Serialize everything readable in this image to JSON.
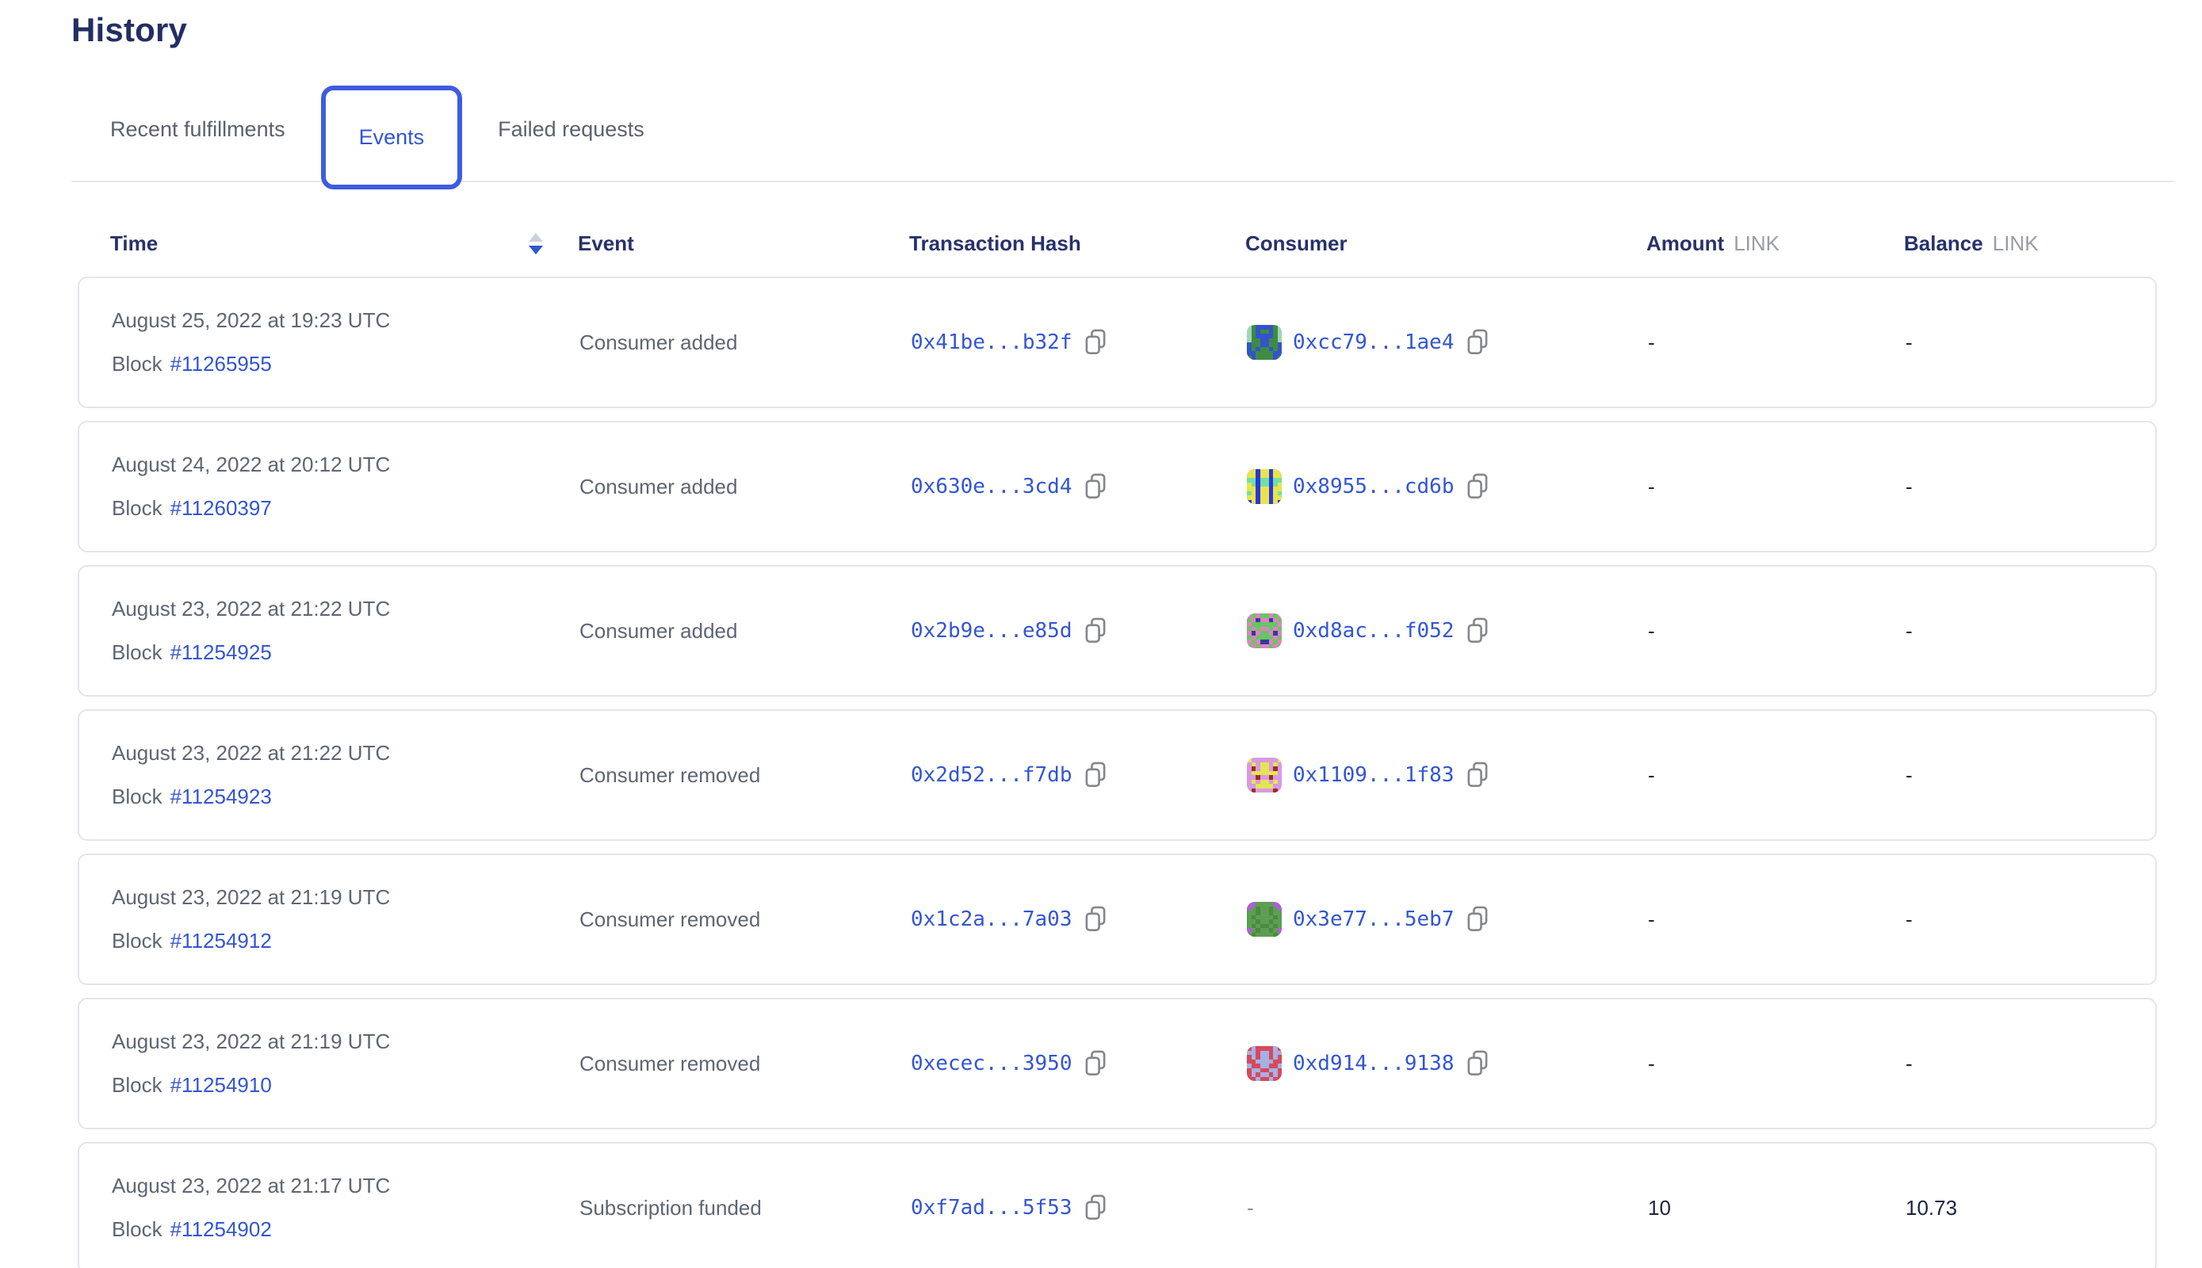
{
  "page": {
    "title": "History"
  },
  "tabs": [
    {
      "label": "Recent fulfillments",
      "active": false
    },
    {
      "label": "Events",
      "active": true
    },
    {
      "label": "Failed requests",
      "active": false
    }
  ],
  "colors": {
    "accent_blue": "#3355d1",
    "tab_border_blue": "#3d5ce0",
    "heading_navy": "#232e63",
    "text_gray": "#5e6573",
    "unit_gray": "#989ca6",
    "border_gray": "#e4e5e9",
    "value_dark": "#1c2340"
  },
  "table": {
    "columns": {
      "time": "Time",
      "event": "Event",
      "hash": "Transaction Hash",
      "consumer": "Consumer",
      "amount": "Amount",
      "balance": "Balance",
      "unit": "LINK"
    },
    "sort": {
      "column": "Time",
      "direction": "desc"
    },
    "rows": [
      {
        "time": "August 25, 2022 at 19:23 UTC",
        "block_label": "Block",
        "block": "#11265955",
        "event": "Consumer added",
        "tx_hash": "0x41be...b32f",
        "consumer": {
          "address": "0xcc79...1ae4",
          "avatar": {
            "bg": "#3e8b41",
            "color": "#3353cc",
            "spot": "#9fd5b5",
            "pattern": [
              "s.cccc.s",
              "s.c..c.s",
              "s.cccc.s",
              "s..cc..s",
              "c..cc..c",
              "c.c..c.c",
              "cc....cc",
              ".c....c."
            ]
          }
        },
        "amount": "-",
        "balance": "-"
      },
      {
        "time": "August 24, 2022 at 20:12 UTC",
        "block_label": "Block",
        "block": "#11260397",
        "event": "Consumer added",
        "tx_hash": "0x630e...3cd4",
        "consumer": {
          "address": "0x8955...cd6b",
          "avatar": {
            "bg": "#2b35d8",
            "color": "#e9e44c",
            "spot": "#71dfa5",
            "pattern": [
              "cc.cc.cc",
              "cc.cc.cc",
              "ss.ss.ss",
              "cs.ss.sc",
              "cc.cc.cc",
              "sc.cc.cs",
              "cc.cc.cc",
              ".c.cc.c."
            ]
          }
        },
        "amount": "-",
        "balance": "-"
      },
      {
        "time": "August 23, 2022 at 21:22 UTC",
        "block_label": "Block",
        "block": "#11254925",
        "event": "Consumer added",
        "tx_hash": "0x2b9e...e85d",
        "consumer": {
          "address": "0xd8ac...f052",
          "avatar": {
            "bg": "#e77fc1",
            "color": "#63c763",
            "spot": "#2c3f96",
            "pattern": [
              ".c.cc.c.",
              "c.s..s.c",
              ".cccccc.",
              "c.c..c.c",
              ".s.cc.s.",
              "c.cccc.c",
              ".c.ss.c.",
              "c.c..c.c"
            ]
          }
        },
        "amount": "-",
        "balance": "-"
      },
      {
        "time": "August 23, 2022 at 21:22 UTC",
        "block_label": "Block",
        "block": "#11254923",
        "event": "Consumer removed",
        "tx_hash": "0x2d52...f7db",
        "consumer": {
          "address": "0x1109...1f83",
          "avatar": {
            "bg": "#d79ae4",
            "color": "#e5e455",
            "spot": "#a42a24",
            "pattern": [
              "c......c",
              ".c.cc.c.",
              ".s.cc.s.",
              ".cccccc.",
              "..s..s..",
              ".c.cc.c.",
              "..cccc..",
              ".s....s."
            ]
          }
        },
        "amount": "-",
        "balance": "-"
      },
      {
        "time": "August 23, 2022 at 21:19 UTC",
        "block_label": "Block",
        "block": "#11254912",
        "event": "Consumer removed",
        "tx_hash": "0x1c2a...7a03",
        "consumer": {
          "address": "0x3e77...5eb7",
          "avatar": {
            "bg": "#5d9e53",
            "color": "#4b8a43",
            "spot": "#b45ae0",
            "pattern": [
              "ss....ss",
              "s.c..c.s",
              "..c..c..",
              ".c....c.",
              "..c..c..",
              ".c.cc.c.",
              "s.c..c.s",
              ".c....c."
            ]
          }
        },
        "amount": "-",
        "balance": "-"
      },
      {
        "time": "August 23, 2022 at 21:19 UTC",
        "block_label": "Block",
        "block": "#11254910",
        "event": "Consumer removed",
        "tx_hash": "0xecec...3950",
        "consumer": {
          "address": "0xd914...9138",
          "avatar": {
            "bg": "#d8495c",
            "color": "#a3b2e4",
            "spot": "#c4394e",
            "pattern": [
              ".c....c.",
              "cc.cc.cc",
              ".c.cc.c.",
              "..cccc..",
              "c..cc..c",
              ".cc..cc.",
              ".c.cc.c.",
              "..c..c.."
            ]
          }
        },
        "amount": "-",
        "balance": "-"
      },
      {
        "time": "August 23, 2022 at 21:17 UTC",
        "block_label": "Block",
        "block": "#11254902",
        "event": "Subscription funded",
        "tx_hash": "0xf7ad...5f53",
        "consumer": null,
        "consumer_placeholder": "-",
        "amount": "10",
        "balance": "10.73"
      }
    ]
  }
}
